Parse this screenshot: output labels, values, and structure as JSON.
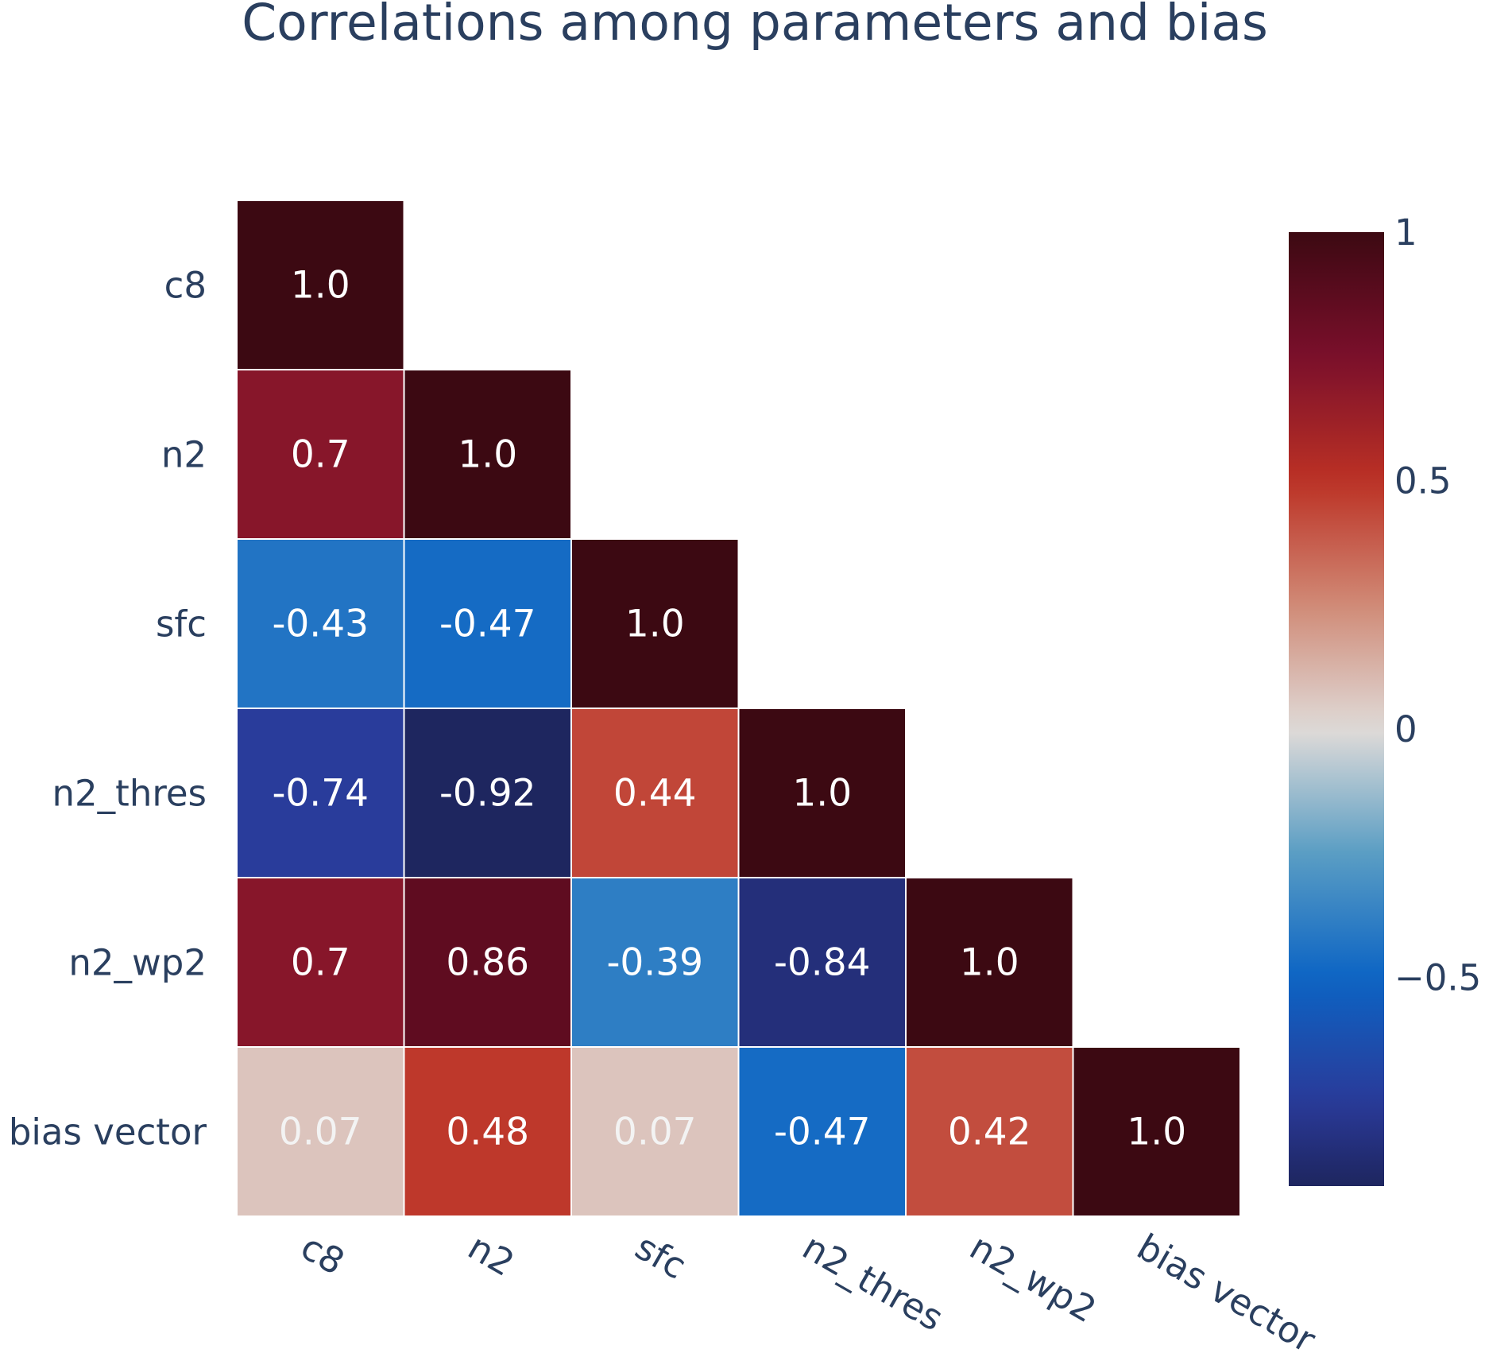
{
  "chart_data": {
    "type": "heatmap",
    "title": "Correlations among parameters and bias",
    "x_labels": [
      "c8",
      "n2",
      "sfc",
      "n2_thres",
      "n2_wp2",
      "bias vector"
    ],
    "y_labels": [
      "c8",
      "n2",
      "sfc",
      "n2_thres",
      "n2_wp2",
      "bias vector"
    ],
    "matrix": [
      [
        1.0,
        null,
        null,
        null,
        null,
        null
      ],
      [
        0.7,
        1.0,
        null,
        null,
        null,
        null
      ],
      [
        -0.43,
        -0.47,
        1.0,
        null,
        null,
        null
      ],
      [
        -0.74,
        -0.92,
        0.44,
        1.0,
        null,
        null
      ],
      [
        0.7,
        0.86,
        -0.39,
        -0.84,
        1.0,
        null
      ],
      [
        0.07,
        0.48,
        0.07,
        -0.47,
        0.42,
        1.0
      ]
    ],
    "cell_labels": [
      [
        "1.0",
        null,
        null,
        null,
        null,
        null
      ],
      [
        "0.7",
        "1.0",
        null,
        null,
        null,
        null
      ],
      [
        "-0.43",
        "-0.47",
        "1.0",
        null,
        null,
        null
      ],
      [
        "-0.74",
        "-0.92",
        "0.44",
        "1.0",
        null,
        null
      ],
      [
        "0.7",
        "0.86",
        "-0.39",
        "-0.84",
        "1.0",
        null
      ],
      [
        "0.07",
        "0.48",
        "0.07",
        "-0.47",
        "0.42",
        "1.0"
      ]
    ],
    "colorscale": "balance",
    "zmin": -0.92,
    "zmax": 1.0,
    "colorbar": {
      "tickvals": [
        1,
        0.5,
        0,
        -0.5
      ],
      "ticktext": [
        "1",
        "0.5",
        "0",
        "−0.5"
      ]
    },
    "xaxis_tick_angle": 30,
    "colors": {
      "text": "#2a3f5f",
      "cell_text_light": "#ffffff",
      "cell_text_faded": "#f3f3f3",
      "cell_border": "#ffffff"
    }
  }
}
